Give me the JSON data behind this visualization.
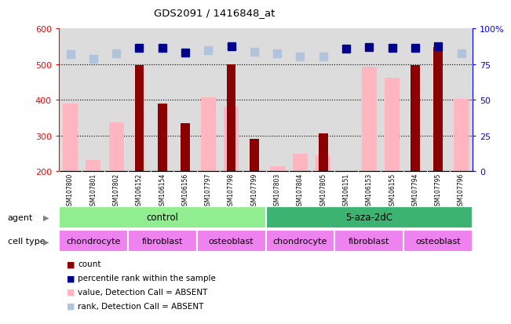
{
  "title": "GDS2091 / 1416848_at",
  "samples": [
    "GSM107800",
    "GSM107801",
    "GSM107802",
    "GSM106152",
    "GSM106154",
    "GSM106156",
    "GSM107797",
    "GSM107798",
    "GSM107799",
    "GSM107803",
    "GSM107804",
    "GSM107805",
    "GSM106151",
    "GSM106153",
    "GSM106155",
    "GSM107794",
    "GSM107795",
    "GSM107796"
  ],
  "count_values": [
    null,
    null,
    null,
    497,
    389,
    334,
    null,
    500,
    290,
    null,
    null,
    307,
    null,
    null,
    null,
    497,
    548,
    null
  ],
  "value_absent": [
    390,
    232,
    337,
    null,
    null,
    null,
    407,
    382,
    null,
    213,
    250,
    244,
    null,
    493,
    462,
    null,
    null,
    403
  ],
  "rank_absent_vals": [
    529,
    515,
    530,
    null,
    null,
    null,
    540,
    null,
    534,
    530,
    521,
    521,
    null,
    null,
    null,
    null,
    null,
    531
  ],
  "percentile_vals": [
    null,
    null,
    null,
    545,
    545,
    532,
    null,
    550,
    null,
    null,
    null,
    null,
    544,
    548,
    546,
    545,
    550,
    null
  ],
  "rank_absent_flags": [
    true,
    true,
    true,
    false,
    false,
    false,
    true,
    false,
    true,
    true,
    true,
    true,
    false,
    false,
    false,
    false,
    false,
    true
  ],
  "ylim_min": 200,
  "ylim_max": 600,
  "yticks_left": [
    200,
    300,
    400,
    500,
    600
  ],
  "yticks_right_vals": [
    200,
    300,
    400,
    500,
    600
  ],
  "yticks_right_labels": [
    "0",
    "25",
    "50",
    "75",
    "100%"
  ],
  "hgrid_lines": [
    300,
    400,
    500
  ],
  "agent_groups": [
    {
      "label": "control",
      "start": 0,
      "end": 8,
      "color": "#90EE90"
    },
    {
      "label": "5-aza-2dC",
      "start": 9,
      "end": 17,
      "color": "#3CB371"
    }
  ],
  "cell_type_groups": [
    {
      "label": "chondrocyte",
      "start": 0,
      "end": 2
    },
    {
      "label": "fibroblast",
      "start": 3,
      "end": 5
    },
    {
      "label": "osteoblast",
      "start": 6,
      "end": 8
    },
    {
      "label": "chondrocyte",
      "start": 9,
      "end": 11
    },
    {
      "label": "fibroblast",
      "start": 12,
      "end": 14
    },
    {
      "label": "osteoblast",
      "start": 15,
      "end": 17
    }
  ],
  "cell_type_color": "#EE82EE",
  "count_color": "#8B0000",
  "value_absent_color": "#FFB6C1",
  "rank_absent_color": "#B0C4DE",
  "percentile_color": "#00008B",
  "count_bar_width": 0.4,
  "absent_bar_width": 0.65,
  "plot_bg_color": "#DCDCDC",
  "marker_size": 7
}
